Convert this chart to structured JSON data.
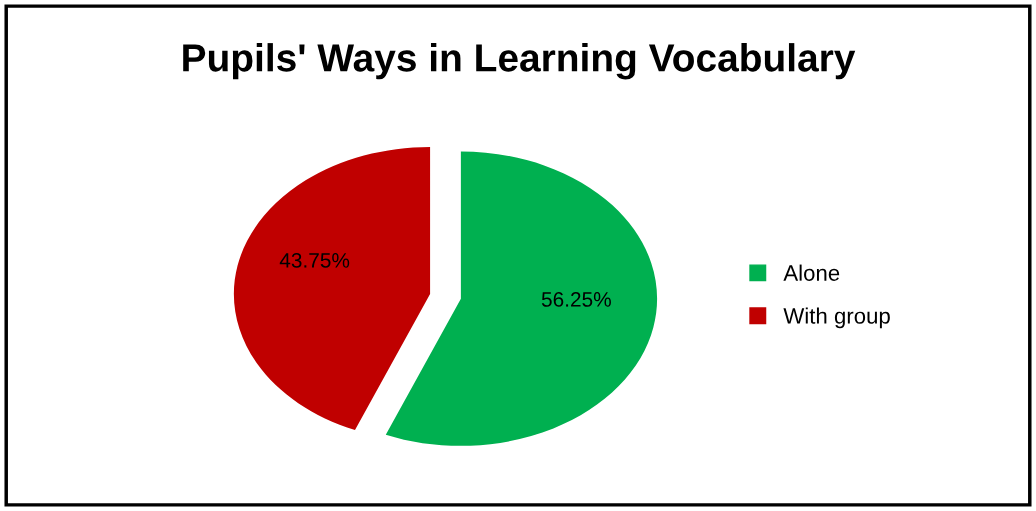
{
  "chart_data": {
    "type": "pie",
    "title": "Pupils' Ways in Learning Vocabulary",
    "categories": [
      "Alone",
      "With group"
    ],
    "values": [
      56.25,
      43.75
    ],
    "colors": [
      "#00b050",
      "#c00000"
    ],
    "value_labels": [
      "56.25%",
      "43.75%"
    ],
    "legend": "right"
  }
}
